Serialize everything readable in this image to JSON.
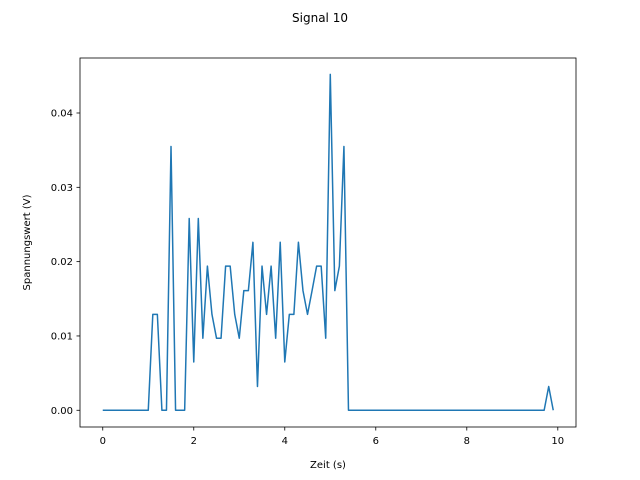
{
  "chart_data": {
    "type": "line",
    "title": "Signal 10",
    "xlabel": "Zeit (s)",
    "ylabel": "Spannungswert (V)",
    "xlim": [
      -0.5,
      10.4
    ],
    "ylim": [
      -0.00225,
      0.0474
    ],
    "xticks": [
      0,
      2,
      4,
      6,
      8,
      10
    ],
    "xtick_labels": [
      "0",
      "2",
      "4",
      "6",
      "8",
      "10"
    ],
    "yticks": [
      0.0,
      0.01,
      0.02,
      0.03,
      0.04
    ],
    "ytick_labels": [
      "0.00",
      "0.01",
      "0.02",
      "0.03",
      "0.04"
    ],
    "grid": false,
    "color": "#1f77b4",
    "series": [
      {
        "x": [
          0,
          0.1,
          0.2,
          0.3,
          0.4,
          0.5,
          0.6,
          0.7,
          0.8,
          0.9,
          1.0,
          1.1,
          1.2,
          1.3,
          1.4,
          1.5,
          1.6,
          1.7,
          1.8,
          1.9,
          2.0,
          2.1,
          2.2,
          2.3,
          2.4,
          2.5,
          2.6,
          2.7,
          2.8,
          2.9,
          3.0,
          3.1,
          3.2,
          3.3,
          3.4,
          3.5,
          3.6,
          3.7,
          3.8,
          3.9,
          4.0,
          4.1,
          4.2,
          4.3,
          4.4,
          4.5,
          4.6,
          4.7,
          4.8,
          4.9,
          5.0,
          5.1,
          5.2,
          5.3,
          5.4,
          5.5,
          5.6,
          5.7,
          5.8,
          5.9,
          6.0,
          6.1,
          6.2,
          6.3,
          6.4,
          6.5,
          6.6,
          6.7,
          6.8,
          6.9,
          7.0,
          7.1,
          7.2,
          7.3,
          7.4,
          7.5,
          7.6,
          7.7,
          7.8,
          7.9,
          8.0,
          8.1,
          8.2,
          8.3,
          8.4,
          8.5,
          8.6,
          8.7,
          8.8,
          8.9,
          9.0,
          9.1,
          9.2,
          9.3,
          9.4,
          9.5,
          9.6,
          9.7,
          9.8,
          9.9
        ],
        "y": [
          0,
          0,
          0,
          0,
          0,
          0,
          0,
          0,
          0,
          0,
          0,
          0.0129,
          0.0129,
          0,
          0,
          0.0355,
          0,
          0,
          0,
          0.0258,
          0.0065,
          0.0258,
          0.0097,
          0.0194,
          0.0129,
          0.0097,
          0.0097,
          0.0194,
          0.0194,
          0.0129,
          0.0097,
          0.0161,
          0.0161,
          0.0226,
          0.0032,
          0.0194,
          0.0129,
          0.0194,
          0.0097,
          0.0226,
          0.0065,
          0.0129,
          0.0129,
          0.0226,
          0.0161,
          0.0129,
          0.0161,
          0.0194,
          0.0194,
          0.0097,
          0.0452,
          0.0161,
          0.0194,
          0.0355,
          0,
          0,
          0,
          0,
          0,
          0,
          0,
          0,
          0,
          0,
          0,
          0,
          0,
          0,
          0,
          0,
          0,
          0,
          0,
          0,
          0,
          0,
          0,
          0,
          0,
          0,
          0,
          0,
          0,
          0,
          0,
          0,
          0,
          0,
          0,
          0,
          0,
          0,
          0,
          0,
          0,
          0,
          0,
          0,
          0.0032,
          0
        ]
      }
    ]
  }
}
